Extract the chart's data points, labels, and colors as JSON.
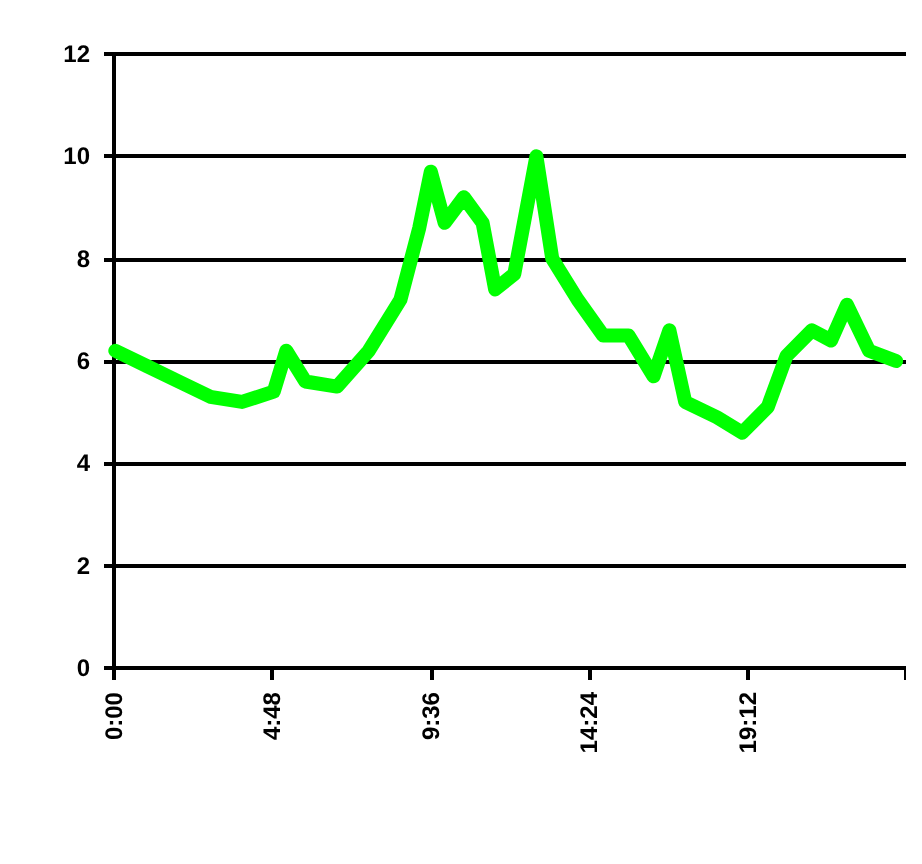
{
  "chart_data": {
    "type": "line",
    "x": [
      0.04,
      1.0,
      1.96,
      2.92,
      3.88,
      4.84,
      5.22,
      5.8,
      6.76,
      7.72,
      8.68,
      9.25,
      9.6,
      10.02,
      10.6,
      11.17,
      11.55,
      12.13,
      12.8,
      13.28,
      14.05,
      14.82,
      15.59,
      16.35,
      16.83,
      17.31,
      18.27,
      19.04,
      19.81,
      20.38,
      21.15,
      21.73,
      22.21,
      22.88,
      23.7
    ],
    "series": [
      {
        "color": "#00ff00",
        "values": [
          6.2,
          5.9,
          5.6,
          5.3,
          5.2,
          5.4,
          6.2,
          5.6,
          5.5,
          6.2,
          7.2,
          8.6,
          9.7,
          8.7,
          9.2,
          8.7,
          7.4,
          7.7,
          10.0,
          8.0,
          7.2,
          6.5,
          6.5,
          5.7,
          6.6,
          5.2,
          4.9,
          4.6,
          5.1,
          6.1,
          6.6,
          6.4,
          7.1,
          6.2,
          6.0
        ]
      }
    ],
    "xlim": [
      0,
      24
    ],
    "xticks": [
      {
        "value": 0,
        "label": "0:00"
      },
      {
        "value": 4.8,
        "label": "4:48"
      },
      {
        "value": 9.6,
        "label": "9:36"
      },
      {
        "value": 14.4,
        "label": "14:24"
      },
      {
        "value": 19.2,
        "label": "19:12"
      },
      {
        "value": 24,
        "label": null
      }
    ],
    "ylim": [
      0,
      12
    ],
    "yticks": [
      0,
      2,
      4,
      6,
      8,
      10,
      12
    ],
    "grid": "y",
    "line_style": "solid"
  }
}
